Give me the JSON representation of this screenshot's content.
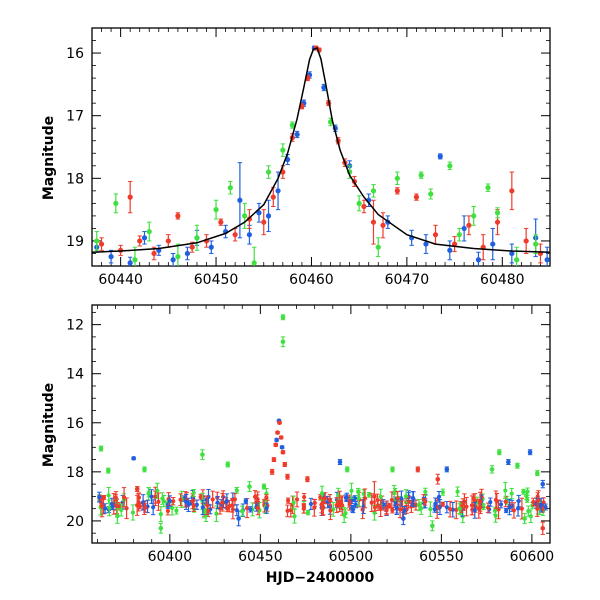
{
  "chart_data": [
    {
      "type": "scatter",
      "title": "",
      "xlabel": "",
      "ylabel": "Magnitude",
      "xlim": [
        60437,
        60485
      ],
      "ylim": [
        19.4,
        15.6
      ],
      "y_inverted": true,
      "xticks": [
        60440,
        60450,
        60460,
        60470,
        60480
      ],
      "xtick_labels": [
        "60440",
        "60450",
        "60460",
        "60470",
        "60480"
      ],
      "yticks": [
        16,
        17,
        18,
        19
      ],
      "ytick_labels": [
        "16",
        "17",
        "18",
        "19"
      ],
      "grid": false,
      "legend": "none",
      "colors": {
        "blue": "#1f5fe0",
        "red": "#ee3b2a",
        "green": "#3fe03f",
        "model": "#000000"
      },
      "model_curve": {
        "name": "",
        "x": [
          60437,
          60440,
          60444,
          60448,
          60451,
          60453,
          60455,
          60456.5,
          60457.5,
          60458.5,
          60459.2,
          60459.8,
          60460.2,
          60460.6,
          60461,
          60461.5,
          60462.2,
          60463,
          60464,
          60465.5,
          60467,
          60470,
          60473,
          60477,
          60481,
          60485
        ],
        "y": [
          19.18,
          19.16,
          19.12,
          19.03,
          18.88,
          18.7,
          18.42,
          18.0,
          17.6,
          17.05,
          16.55,
          16.1,
          15.94,
          15.92,
          16.1,
          16.5,
          17.08,
          17.55,
          17.95,
          18.3,
          18.58,
          18.9,
          19.05,
          19.12,
          19.16,
          19.18
        ]
      },
      "series": [
        {
          "color": "blue",
          "points": [
            {
              "x": 60437.5,
              "y": 19.1,
              "e": 0.08
            },
            {
              "x": 60439,
              "y": 19.25,
              "e": 0.1
            },
            {
              "x": 60441,
              "y": 19.35,
              "e": 0.09
            },
            {
              "x": 60442.5,
              "y": 18.95,
              "e": 0.1
            },
            {
              "x": 60444,
              "y": 19.15,
              "e": 0.08
            },
            {
              "x": 60445.5,
              "y": 19.3,
              "e": 0.1
            },
            {
              "x": 60447,
              "y": 19.2,
              "e": 0.1
            },
            {
              "x": 60448,
              "y": 18.95,
              "e": 0.12
            },
            {
              "x": 60449.5,
              "y": 19.1,
              "e": 0.1
            },
            {
              "x": 60451,
              "y": 18.85,
              "e": 0.1
            },
            {
              "x": 60452.5,
              "y": 18.35,
              "e": 0.6
            },
            {
              "x": 60453.5,
              "y": 18.9,
              "e": 0.15
            },
            {
              "x": 60454.5,
              "y": 18.55,
              "e": 0.15
            },
            {
              "x": 60455.5,
              "y": 18.6,
              "e": 0.25
            },
            {
              "x": 60456.5,
              "y": 18.2,
              "e": 0.3
            },
            {
              "x": 60457.5,
              "y": 17.7,
              "e": 0.08
            },
            {
              "x": 60458.5,
              "y": 17.3,
              "e": 0.05
            },
            {
              "x": 60459.2,
              "y": 16.8,
              "e": 0.05
            },
            {
              "x": 60459.8,
              "y": 16.35,
              "e": 0.05
            },
            {
              "x": 60460.3,
              "y": 15.92,
              "e": 0.03
            },
            {
              "x": 60461.3,
              "y": 16.55,
              "e": 0.05
            },
            {
              "x": 60462.5,
              "y": 17.2,
              "e": 0.05
            },
            {
              "x": 60464,
              "y": 17.8,
              "e": 0.08
            },
            {
              "x": 60466,
              "y": 18.35,
              "e": 0.1
            },
            {
              "x": 60468,
              "y": 18.7,
              "e": 0.1
            },
            {
              "x": 60470.5,
              "y": 18.95,
              "e": 0.12
            },
            {
              "x": 60472,
              "y": 19.05,
              "e": 0.15
            },
            {
              "x": 60473.5,
              "y": 17.65,
              "e": 0.04
            },
            {
              "x": 60474.5,
              "y": 19.15,
              "e": 0.15
            },
            {
              "x": 60476,
              "y": 18.8,
              "e": 0.2
            },
            {
              "x": 60477.5,
              "y": 19.3,
              "e": 0.12
            },
            {
              "x": 60479,
              "y": 19.05,
              "e": 0.25
            },
            {
              "x": 60481,
              "y": 19.2,
              "e": 0.15
            },
            {
              "x": 60483.5,
              "y": 18.95,
              "e": 0.3
            },
            {
              "x": 60484.7,
              "y": 19.3,
              "e": 0.2
            }
          ]
        },
        {
          "color": "red",
          "points": [
            {
              "x": 60438,
              "y": 19.05,
              "e": 0.1
            },
            {
              "x": 60440,
              "y": 19.15,
              "e": 0.08
            },
            {
              "x": 60441,
              "y": 18.3,
              "e": 0.25
            },
            {
              "x": 60442,
              "y": 19.0,
              "e": 0.08
            },
            {
              "x": 60443.5,
              "y": 19.2,
              "e": 0.1
            },
            {
              "x": 60445,
              "y": 19.0,
              "e": 0.1
            },
            {
              "x": 60446,
              "y": 18.6,
              "e": 0.05
            },
            {
              "x": 60447.5,
              "y": 19.1,
              "e": 0.08
            },
            {
              "x": 60449,
              "y": 19.0,
              "e": 0.1
            },
            {
              "x": 60450.5,
              "y": 18.7,
              "e": 0.05
            },
            {
              "x": 60452,
              "y": 18.9,
              "e": 0.1
            },
            {
              "x": 60453.5,
              "y": 18.65,
              "e": 0.15
            },
            {
              "x": 60455,
              "y": 18.7,
              "e": 0.2
            },
            {
              "x": 60456,
              "y": 18.3,
              "e": 0.15
            },
            {
              "x": 60457,
              "y": 17.9,
              "e": 0.1
            },
            {
              "x": 60458,
              "y": 17.35,
              "e": 0.06
            },
            {
              "x": 60459,
              "y": 16.85,
              "e": 0.04
            },
            {
              "x": 60459.6,
              "y": 16.4,
              "e": 0.04
            },
            {
              "x": 60460.5,
              "y": 15.92,
              "e": 0.03
            },
            {
              "x": 60460.8,
              "y": 15.95,
              "e": 0.03
            },
            {
              "x": 60461.8,
              "y": 16.8,
              "e": 0.04
            },
            {
              "x": 60462.8,
              "y": 17.4,
              "e": 0.05
            },
            {
              "x": 60463.5,
              "y": 17.75,
              "e": 0.06
            },
            {
              "x": 60464.5,
              "y": 18.05,
              "e": 0.08
            },
            {
              "x": 60465.5,
              "y": 18.45,
              "e": 0.1
            },
            {
              "x": 60466.5,
              "y": 18.7,
              "e": 0.35
            },
            {
              "x": 60467.5,
              "y": 18.75,
              "e": 0.2
            },
            {
              "x": 60469,
              "y": 18.2,
              "e": 0.05
            },
            {
              "x": 60471,
              "y": 18.3,
              "e": 0.05
            },
            {
              "x": 60473,
              "y": 18.9,
              "e": 0.15
            },
            {
              "x": 60475,
              "y": 19.05,
              "e": 0.12
            },
            {
              "x": 60476.5,
              "y": 18.75,
              "e": 0.15
            },
            {
              "x": 60478,
              "y": 19.1,
              "e": 0.2
            },
            {
              "x": 60479.5,
              "y": 18.7,
              "e": 0.2
            },
            {
              "x": 60481,
              "y": 18.2,
              "e": 0.3
            },
            {
              "x": 60482.5,
              "y": 19.0,
              "e": 0.2
            },
            {
              "x": 60484,
              "y": 19.2,
              "e": 0.15
            }
          ]
        },
        {
          "color": "green",
          "points": [
            {
              "x": 60437.5,
              "y": 19.0,
              "e": 0.15
            },
            {
              "x": 60439.5,
              "y": 18.4,
              "e": 0.15
            },
            {
              "x": 60441.5,
              "y": 19.3,
              "e": 0.2
            },
            {
              "x": 60443,
              "y": 18.85,
              "e": 0.15
            },
            {
              "x": 60446,
              "y": 19.25,
              "e": 0.2
            },
            {
              "x": 60448,
              "y": 18.95,
              "e": 0.2
            },
            {
              "x": 60450,
              "y": 18.5,
              "e": 0.15
            },
            {
              "x": 60451.5,
              "y": 18.15,
              "e": 0.1
            },
            {
              "x": 60453,
              "y": 18.6,
              "e": 0.2
            },
            {
              "x": 60454,
              "y": 19.35,
              "e": 0.25
            },
            {
              "x": 60455.5,
              "y": 17.9,
              "e": 0.1
            },
            {
              "x": 60457,
              "y": 17.55,
              "e": 0.1
            },
            {
              "x": 60458,
              "y": 17.15,
              "e": 0.05
            },
            {
              "x": 60462,
              "y": 17.1,
              "e": 0.06
            },
            {
              "x": 60464,
              "y": 17.9,
              "e": 0.1
            },
            {
              "x": 60465,
              "y": 18.4,
              "e": 0.12
            },
            {
              "x": 60466.5,
              "y": 18.2,
              "e": 0.1
            },
            {
              "x": 60467,
              "y": 19.1,
              "e": 0.15
            },
            {
              "x": 60469,
              "y": 18.0,
              "e": 0.1
            },
            {
              "x": 60471.5,
              "y": 17.95,
              "e": 0.05
            },
            {
              "x": 60472.5,
              "y": 18.25,
              "e": 0.08
            },
            {
              "x": 60474.5,
              "y": 17.8,
              "e": 0.06
            },
            {
              "x": 60475.5,
              "y": 18.9,
              "e": 0.1
            },
            {
              "x": 60477,
              "y": 18.6,
              "e": 0.15
            },
            {
              "x": 60478.5,
              "y": 18.15,
              "e": 0.06
            },
            {
              "x": 60479.5,
              "y": 18.55,
              "e": 0.08
            },
            {
              "x": 60481.5,
              "y": 19.3,
              "e": 0.2
            },
            {
              "x": 60483.5,
              "y": 19.05,
              "e": 0.15
            }
          ]
        }
      ]
    },
    {
      "type": "scatter",
      "title": "",
      "xlabel": "HJD−2400000",
      "ylabel": "Magnitude",
      "xlim": [
        60357,
        60610
      ],
      "ylim": [
        20.9,
        11.2
      ],
      "y_inverted": true,
      "xticks": [
        60400,
        60450,
        60500,
        60550,
        60600
      ],
      "xtick_labels": [
        "60400",
        "60450",
        "60500",
        "60550",
        "60600"
      ],
      "yticks": [
        12,
        14,
        16,
        18,
        20
      ],
      "ytick_labels": [
        "12",
        "14",
        "16",
        "18",
        "20"
      ],
      "grid": false,
      "legend": "none",
      "baseline_density": 320,
      "outlier_points": [
        {
          "color": "green",
          "x": 60462.5,
          "y": 11.7,
          "e": 0.1
        },
        {
          "color": "green",
          "x": 60462.5,
          "y": 12.7,
          "e": 0.2
        },
        {
          "color": "green",
          "x": 60362,
          "y": 17.05,
          "e": 0.1
        },
        {
          "color": "green",
          "x": 60366,
          "y": 17.95,
          "e": 0.1
        },
        {
          "color": "green",
          "x": 60371,
          "y": 19.8,
          "e": 0.3
        },
        {
          "color": "blue",
          "x": 60380,
          "y": 17.45,
          "e": 0.05
        },
        {
          "color": "red",
          "x": 60382,
          "y": 18.7,
          "e": 0.1
        },
        {
          "color": "green",
          "x": 60386,
          "y": 17.9,
          "e": 0.1
        },
        {
          "color": "green",
          "x": 60395,
          "y": 20.3,
          "e": 0.2
        },
        {
          "color": "green",
          "x": 60418,
          "y": 17.3,
          "e": 0.2
        },
        {
          "color": "green",
          "x": 60432,
          "y": 17.7,
          "e": 0.1
        },
        {
          "color": "blue",
          "x": 60438,
          "y": 19.9,
          "e": 0.3
        },
        {
          "color": "green",
          "x": 60440,
          "y": 19.6,
          "e": 0.2
        },
        {
          "color": "blue",
          "x": 60442,
          "y": 19.2,
          "e": 0.1
        },
        {
          "color": "green",
          "x": 60444,
          "y": 18.6,
          "e": 0.2
        },
        {
          "color": "green",
          "x": 60452,
          "y": 18.6,
          "e": 0.1
        },
        {
          "color": "blue",
          "x": 60494,
          "y": 17.6,
          "e": 0.1
        },
        {
          "color": "red",
          "x": 60476,
          "y": 18.3,
          "e": 0.1
        },
        {
          "color": "green",
          "x": 60498,
          "y": 17.9,
          "e": 0.1
        },
        {
          "color": "red",
          "x": 60513,
          "y": 19.0,
          "e": 0.6
        },
        {
          "color": "green",
          "x": 60523,
          "y": 17.9,
          "e": 0.1
        },
        {
          "color": "blue",
          "x": 60529,
          "y": 19.9,
          "e": 0.25
        },
        {
          "color": "red",
          "x": 60537,
          "y": 17.9,
          "e": 0.1
        },
        {
          "color": "green",
          "x": 60545,
          "y": 20.2,
          "e": 0.2
        },
        {
          "color": "red",
          "x": 60548,
          "y": 18.3,
          "e": 0.2
        },
        {
          "color": "blue",
          "x": 60553,
          "y": 17.9,
          "e": 0.1
        },
        {
          "color": "green",
          "x": 60560,
          "y": 19.5,
          "e": 0.2
        },
        {
          "color": "green",
          "x": 60578,
          "y": 17.9,
          "e": 0.15
        },
        {
          "color": "green",
          "x": 60582,
          "y": 17.2,
          "e": 0.1
        },
        {
          "color": "blue",
          "x": 60587,
          "y": 17.6,
          "e": 0.1
        },
        {
          "color": "green",
          "x": 60592,
          "y": 17.75,
          "e": 0.1
        },
        {
          "color": "blue",
          "x": 60599,
          "y": 17.2,
          "e": 0.1
        },
        {
          "color": "green",
          "x": 60603,
          "y": 18.05,
          "e": 0.1
        },
        {
          "color": "blue",
          "x": 60606,
          "y": 18.5,
          "e": 0.15
        },
        {
          "color": "red",
          "x": 60606,
          "y": 20.3,
          "e": 0.25
        },
        {
          "color": "green",
          "x": 60596,
          "y": 19.9,
          "e": 0.2
        }
      ],
      "peak_points": [
        {
          "color": "blue",
          "x": 60460.3,
          "y": 15.92,
          "e": 0.04
        },
        {
          "color": "red",
          "x": 60460.6,
          "y": 16.0,
          "e": 0.04
        },
        {
          "color": "red",
          "x": 60459.5,
          "y": 16.4,
          "e": 0.05
        },
        {
          "color": "red",
          "x": 60461.5,
          "y": 16.6,
          "e": 0.05
        },
        {
          "color": "red",
          "x": 60458.5,
          "y": 16.9,
          "e": 0.06
        },
        {
          "color": "red",
          "x": 60462.5,
          "y": 17.2,
          "e": 0.06
        },
        {
          "color": "red",
          "x": 60457.5,
          "y": 17.5,
          "e": 0.08
        },
        {
          "color": "red",
          "x": 60463.5,
          "y": 17.7,
          "e": 0.08
        },
        {
          "color": "red",
          "x": 60456.5,
          "y": 18.0,
          "e": 0.1
        },
        {
          "color": "red",
          "x": 60465,
          "y": 18.2,
          "e": 0.1
        },
        {
          "color": "blue",
          "x": 60459,
          "y": 16.7,
          "e": 0.05
        },
        {
          "color": "blue",
          "x": 60462,
          "y": 17.0,
          "e": 0.05
        }
      ]
    }
  ]
}
